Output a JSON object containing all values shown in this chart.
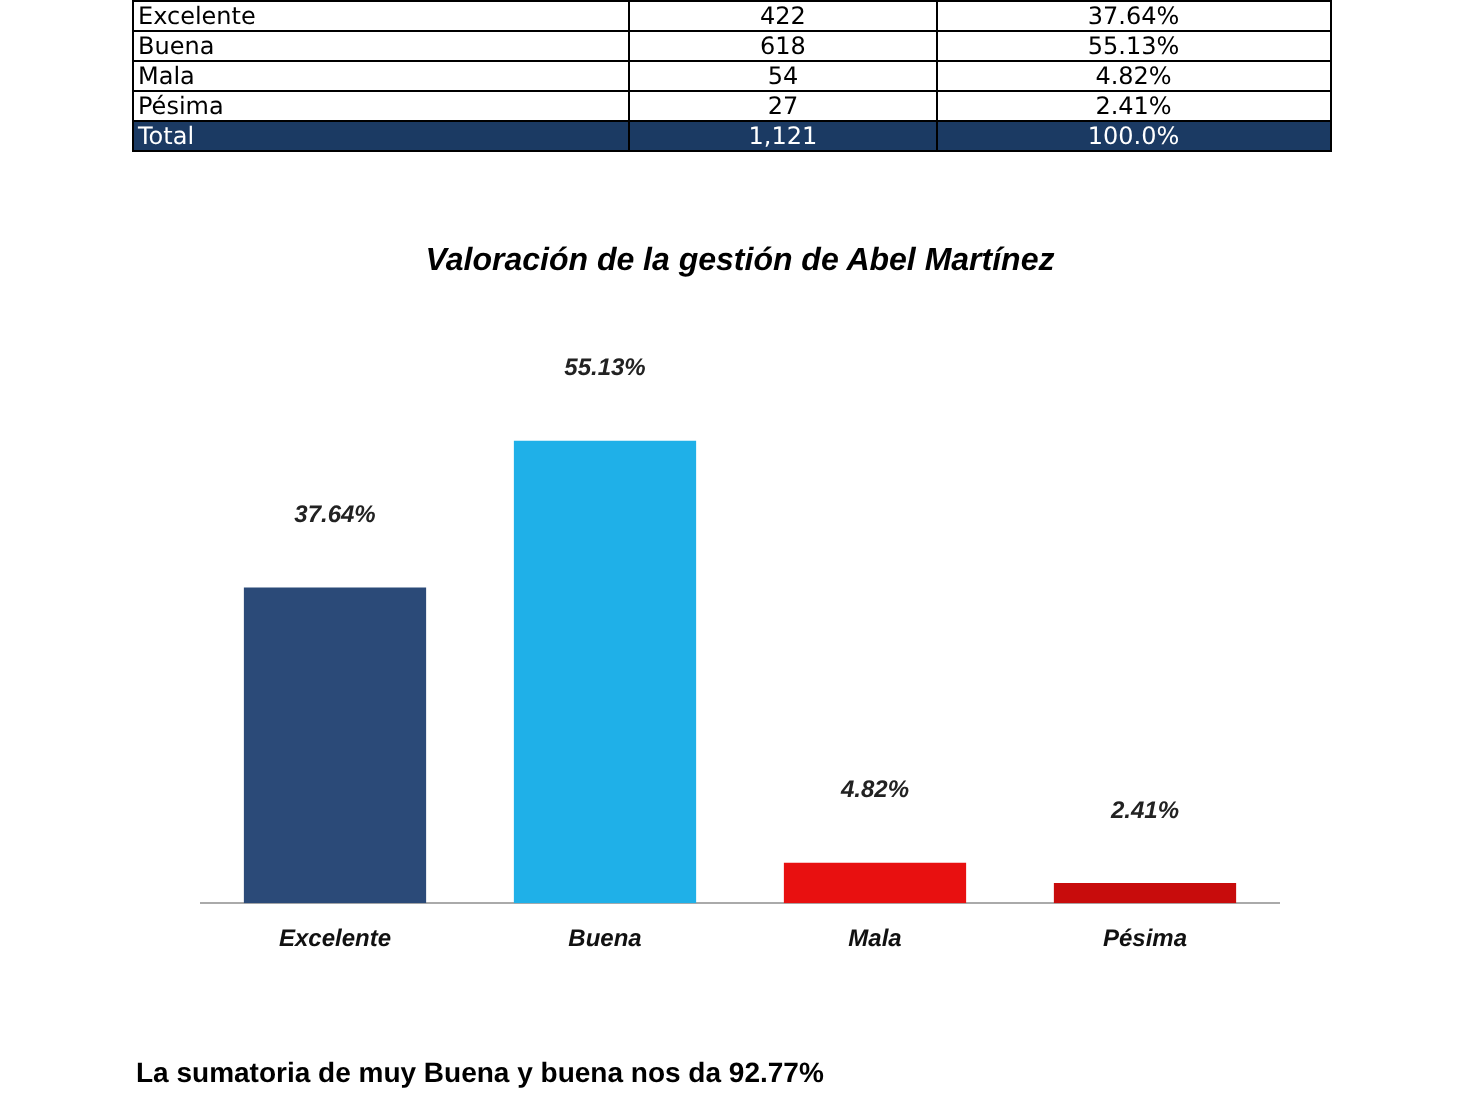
{
  "chart_data": [
    {
      "type": "other",
      "categories": [
        "Excelente",
        "Buena",
        "Mala",
        "Pésima",
        "Total"
      ],
      "series": [
        {
          "values": [
            422,
            618,
            54,
            27,
            1121
          ],
          "value_labels": [
            "422",
            "618",
            "54",
            "27",
            "1,121"
          ]
        },
        {
          "values": [
            37.64,
            55.13,
            4.82,
            2.41,
            100.0
          ],
          "value_labels": [
            "37.64%",
            "55.13%",
            "4.82%",
            "2.41%",
            "100.0%"
          ]
        }
      ]
    },
    {
      "type": "bar",
      "title": "Valoración de la gestión de Abel Martínez",
      "categories": [
        "Excelente",
        "Buena",
        "Mala",
        "Pésima"
      ],
      "values": [
        37.64,
        55.13,
        4.82,
        2.41
      ],
      "colors": [
        "#2b4a78",
        "#1fb0e8",
        "#e81010",
        "#c80c0c"
      ],
      "value_labels": [
        "37.64%",
        "55.13%",
        "4.82%",
        "2.41%"
      ],
      "annotations": [
        "La sumatoria de muy Buena y buena nos da 92.77%"
      ]
    }
  ]
}
